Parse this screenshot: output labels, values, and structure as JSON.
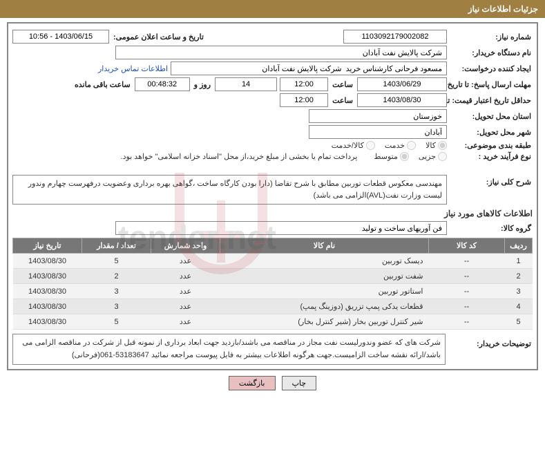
{
  "header": {
    "title": "جزئیات اطلاعات نیاز"
  },
  "requirement": {
    "number_label": "شماره نیاز:",
    "number": "1103092179002082",
    "announce_label": "تاریخ و ساعت اعلان عمومی:",
    "announce": "1403/06/15 - 10:56",
    "buyer_org_label": "نام دستگاه خریدار:",
    "buyer_org": "شرکت پالایش نفت آبادان",
    "requester_label": "ایجاد کننده درخواست:",
    "requester": "مسعود فرحانی کارشناس خرید  شرکت پالایش نفت آبادان",
    "contact_link": "اطلاعات تماس خریدار",
    "reply_deadline_label": "مهلت ارسال پاسخ: تا تاریخ:",
    "reply_date": "1403/06/29",
    "time_label": "ساعت",
    "reply_time": "12:00",
    "days": "14",
    "days_label": "روز و",
    "countdown": "00:48:32",
    "remaining_label": "ساعت باقی مانده",
    "validity_label": "حداقل تاریخ اعتبار قیمت: تا تاریخ:",
    "validity_date": "1403/08/30",
    "validity_time": "12:00",
    "province_label": "استان محل تحویل:",
    "province": "خوزستان",
    "city_label": "شهر محل تحویل:",
    "city": "آبادان",
    "category_label": "طبقه بندی موضوعی:",
    "radios": {
      "goods": "کالا",
      "service": "خدمت",
      "both": "کالا/خدمت"
    },
    "proc_type_label": "نوع فرآیند خرید :",
    "proc_radios": {
      "small": "جزیی",
      "medium": "متوسط"
    },
    "payment_note": "پرداخت تمام یا بخشی از مبلغ خرید،از محل \"اسناد خزانه اسلامی\" خواهد بود.",
    "overall_label": "شرح کلی نیاز:",
    "overall_desc": "مهندسی معکوس قطعات توربین مطابق با شرح تقاضا (دارا بودن کارگاه ساخت ،گواهی بهره برداری وعضویت درفهرست چهارم وندور لیست وزارت نفت(AVL)الزامی می باشد)",
    "items_title": "اطلاعات کالاهای مورد نیاز",
    "group_label": "گروه کالا:",
    "group": "فن آوریهای ساخت و تولید",
    "buyer_note_label": "توضیحات خریدار:",
    "buyer_note": "شرکت های که عضو وندورلیست نفت  مجاز در مناقصه می باشند/بازدید جهت ابعاد برداری از نمونه قبل از شرکت در مناقصه الزامی می باشد/ارائه نقشه ساخت الزامیست.جهت هرگونه اطلاعات بیشتر به فایل پیوست مراجعه نمائید  53183647-061(فرحانی)"
  },
  "table": {
    "headers": {
      "row": "ردیف",
      "code": "کد کالا",
      "name": "نام کالا",
      "unit": "واحد شمارش",
      "qty": "تعداد / مقدار",
      "date": "تاریخ نیاز"
    },
    "rows": [
      {
        "n": "1",
        "code": "--",
        "name": "دیسک توربین",
        "unit": "عدد",
        "qty": "5",
        "date": "1403/08/30"
      },
      {
        "n": "2",
        "code": "--",
        "name": "شفت توربین",
        "unit": "عدد",
        "qty": "2",
        "date": "1403/08/30"
      },
      {
        "n": "3",
        "code": "--",
        "name": "استاتور توربین",
        "unit": "عدد",
        "qty": "3",
        "date": "1403/08/30"
      },
      {
        "n": "4",
        "code": "--",
        "name": "قطعات یدکی پمپ تزریق (دوزینگ پمپ)",
        "unit": "عدد",
        "qty": "3",
        "date": "1403/08/30"
      },
      {
        "n": "5",
        "code": "--",
        "name": "شیر کنترل توربین بخار (شیر کنترل بخار)",
        "unit": "عدد",
        "qty": "5",
        "date": "1403/08/30"
      }
    ]
  },
  "buttons": {
    "print": "چاپ",
    "back": "بازگشت"
  },
  "colors": {
    "header_bg": "#a08042",
    "th_bg": "#777777",
    "border": "#888888",
    "link": "#1a4fc7",
    "btn_back_bg": "#e8c0c0"
  }
}
